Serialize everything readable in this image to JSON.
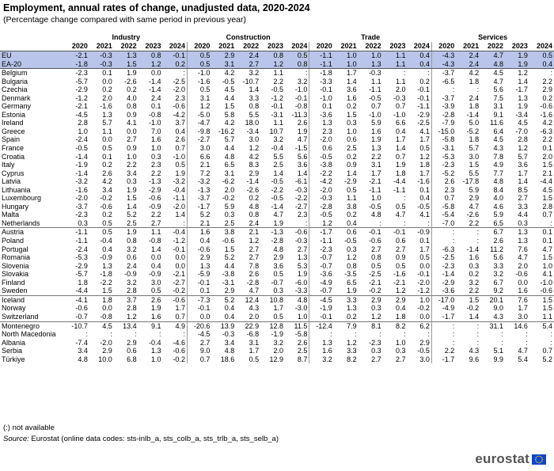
{
  "title": "Employment, annual rates of change, unadjusted data, 2020-2024",
  "subtitle": "(Percentage change compared with same period in previous year)",
  "groups": [
    "Industry",
    "Construction",
    "Trade",
    "Services"
  ],
  "years": [
    "2020",
    "2021",
    "2022",
    "2023",
    "2024"
  ],
  "rows": [
    {
      "c": "EU",
      "v": [
        "-2.1",
        "-0.3",
        "1.3",
        "0.8",
        "-0.1",
        "0.5",
        "2.9",
        "2.4",
        "0.8",
        "0.5",
        "-1.1",
        "1.0",
        "1.0",
        "1.1",
        "0.4",
        "-4.3",
        "2.4",
        "4.7",
        "1.9",
        "0.5"
      ],
      "agg": true
    },
    {
      "c": "EA-20",
      "v": [
        "-1.8",
        "-0.3",
        "1.5",
        "1.2",
        "0.2",
        "0.5",
        "3.1",
        "2.7",
        "1.2",
        "0.8",
        "-1.1",
        "1.0",
        "1.3",
        "1.1",
        "0.4",
        "-4.3",
        "2.4",
        "4.8",
        "1.9",
        "0.4"
      ],
      "agg": true,
      "last": true
    },
    {
      "c": "Belgium",
      "v": [
        "-2.3",
        "0.1",
        "1.9",
        "0.0",
        ":",
        "-1.0",
        "4.2",
        "3.2",
        "1.1",
        ":",
        "-1.8",
        "1.7",
        "-0.3",
        ":",
        ":",
        "-3.7",
        "4.2",
        "4.5",
        "1.2",
        ":"
      ]
    },
    {
      "c": "Bulgaria",
      "v": [
        "-5.7",
        "0.0",
        "-2.6",
        "-1.4",
        "-2.5",
        "-1.6",
        "-0.5",
        "-10.7",
        "2.2",
        "3.2",
        "-3.3",
        "1.4",
        "1.1",
        "1.1",
        "0.2",
        "-6.5",
        "1.8",
        "4.7",
        "1.4",
        "2.2"
      ]
    },
    {
      "c": "Czechia",
      "v": [
        "-2.9",
        "0.2",
        "0.2",
        "-1.4",
        "-2.0",
        "0.5",
        "4.5",
        "1.4",
        "-0.5",
        "-1.0",
        "-0.1",
        "3.6",
        "-1.1",
        "2.0",
        "-0.1",
        ":",
        ":",
        "5.6",
        "-1.7",
        "2.9"
      ]
    },
    {
      "c": "Denmark",
      "v": [
        "-1.2",
        "2.0",
        "4.0",
        "2.4",
        "2.3",
        "3.1",
        "4.4",
        "3.3",
        "-1.2",
        "-0.1",
        "-1.0",
        "1.6",
        "-0.5",
        "-0.3",
        "-0.1",
        "-3.7",
        "2.4",
        "7.5",
        "1.3",
        "0.2"
      ]
    },
    {
      "c": "Germany",
      "v": [
        "-2.1",
        "-1.6",
        "0.8",
        "0.1",
        "-0.6",
        "1.2",
        "1.5",
        "0.8",
        "-0.1",
        "-0.8",
        "0.1",
        "0.2",
        "0.7",
        "0.7",
        "-1.1",
        "-3.9",
        "1.8",
        "3.1",
        "1.9",
        "-0.6"
      ]
    },
    {
      "c": "Estonia",
      "v": [
        "-4.5",
        "1.3",
        "0.9",
        "-0.8",
        "-4.2",
        "-5.0",
        "5.8",
        "5.5",
        "-3.1",
        "-11.3",
        "-3.6",
        "1.5",
        "-1.0",
        "-1.0",
        "-2.9",
        "-2.8",
        "-1.4",
        "9.1",
        "-3.4",
        "-1.6"
      ]
    },
    {
      "c": "Ireland",
      "v": [
        "2.8",
        "5.7",
        "4.1",
        "-1.0",
        "3.7",
        "-4.7",
        "4.2",
        "18.0",
        "1.1",
        "2.6",
        "1.3",
        "0.3",
        "5.9",
        "6.6",
        "-2.5",
        "-7.9",
        "5.0",
        "11.6",
        "4.5",
        "4.2"
      ]
    },
    {
      "c": "Greece",
      "v": [
        "1.0",
        "1.1",
        "0.0",
        "7.0",
        "0.4",
        "-9.8",
        "-16.2",
        "-3.4",
        "10.7",
        "1.9",
        "2.3",
        "1.0",
        "1.6",
        "0.4",
        "4.1",
        "-15.0",
        "-5.2",
        "6.4",
        "-7.0",
        "-6.3"
      ]
    },
    {
      "c": "Spain",
      "v": [
        "-2.4",
        "0.0",
        "2.7",
        "1.6",
        "2.6",
        "-2.7",
        "5.7",
        "3.0",
        "3.2",
        "4.7",
        "-2.0",
        "0.6",
        "1.9",
        "1.7",
        "1.7",
        "-5.8",
        "1.8",
        "4.5",
        "2.8",
        "2.2"
      ]
    },
    {
      "c": "France",
      "v": [
        "-0.5",
        "0.5",
        "0.9",
        "1.0",
        "0.7",
        "3.0",
        "4.4",
        "1.2",
        "-0.4",
        "-1.5",
        "0.6",
        "2.5",
        "1.3",
        "1.4",
        "0.5",
        "-3.1",
        "5.7",
        "4.3",
        "1.2",
        "0.1"
      ]
    },
    {
      "c": "Croatia",
      "v": [
        "-1.4",
        "0.1",
        "1.0",
        "0.3",
        "-1.0",
        "6.6",
        "4.8",
        "4.2",
        "5.5",
        "5.6",
        "-0.5",
        "0.2",
        "2.2",
        "0.7",
        "1.2",
        "-5.3",
        "3.0",
        "7.8",
        "5.7",
        "2.0"
      ]
    },
    {
      "c": "Italy",
      "v": [
        "-1.9",
        "0.2",
        "2.2",
        "2.3",
        "0.5",
        "2.1",
        "6.5",
        "8.3",
        "2.5",
        "3.6",
        "-3.8",
        "0.9",
        "3.1",
        "1.9",
        "1.8",
        "-2.3",
        "1.5",
        "4.9",
        "3.6",
        "1.5"
      ]
    },
    {
      "c": "Cyprus",
      "v": [
        "-1.4",
        "2.6",
        "3.4",
        "2.2",
        "1.9",
        "7.2",
        "3.1",
        "2.9",
        "1.4",
        "1.4",
        "-2.2",
        "1.4",
        "1.7",
        "1.8",
        "1.7",
        "-5.2",
        "5.5",
        "7.7",
        "1.7",
        "2.1"
      ]
    },
    {
      "c": "Latvia",
      "v": [
        "-3.2",
        "4.2",
        "0.3",
        "-1.3",
        "-3.2",
        "-3.2",
        "-6.2",
        "-1.4",
        "-0.5",
        "-6.1",
        "-4.2",
        "-2.9",
        "-2.1",
        "-4.4",
        "-1.6",
        "2.6",
        "-17.8",
        "4.8",
        "1.4",
        "-4.4"
      ]
    },
    {
      "c": "Lithuania",
      "v": [
        "-1.6",
        "3.4",
        "1.9",
        "-2.9",
        "-0.4",
        "-1.3",
        "2.0",
        "-2.6",
        "-2.2",
        "-0.3",
        "-2.0",
        "0.5",
        "-1.1",
        "-1.1",
        "0.1",
        "2.3",
        "5.9",
        "8.4",
        "8.5",
        "4.5"
      ]
    },
    {
      "c": "Luxembourg",
      "v": [
        "-2.0",
        "-0.2",
        "1.5",
        "-0.6",
        "-1.1",
        "-3.7",
        "-0.2",
        "0.2",
        "-0.5",
        "-2.2",
        "-0.3",
        "1.1",
        "1.0",
        ":",
        "0.4",
        "0.7",
        "2.9",
        "4.0",
        "2.7",
        "1.5"
      ]
    },
    {
      "c": "Hungary",
      "v": [
        "-3.7",
        "-0.6",
        "1.4",
        "-0.9",
        "-2.0",
        "-1.7",
        "5.9",
        "4.8",
        "-1.4",
        "-2.7",
        "-2.8",
        "3.8",
        "-0.5",
        "0.5",
        "-0.5",
        "-5.8",
        "4.7",
        "4.6",
        "3.3",
        "2.8"
      ]
    },
    {
      "c": "Malta",
      "v": [
        "-2.3",
        "0.2",
        "5.2",
        "2.2",
        "1.4",
        "5.2",
        "0.3",
        "0.8",
        "4.7",
        "2.3",
        "-0.5",
        "0.2",
        "4.8",
        "4.7",
        "4.1",
        "-5.4",
        "-2.6",
        "5.9",
        "4.4",
        "0.7"
      ]
    },
    {
      "c": "Netherlands",
      "v": [
        "0.3",
        "0.5",
        "2.5",
        "2.7",
        ":",
        "2.1",
        "2.5",
        "2.4",
        "1.9",
        ":",
        "1.2",
        "0.4",
        ":",
        ":",
        ":",
        "-7.0",
        "2.2",
        "6.5",
        "0.3",
        ":"
      ]
    },
    {
      "c": "Austria",
      "v": [
        "-1.1",
        "0.5",
        "1.9",
        "1.1",
        "-0.4",
        "1.6",
        "3.8",
        "2.1",
        "-1.3",
        "-0.6",
        "-1.7",
        "0.6",
        "-0.1",
        "-0.1",
        "-0.9",
        ":",
        ":",
        "6.7",
        "1.3",
        "0.1"
      ],
      "sep": true
    },
    {
      "c": "Poland",
      "v": [
        "-1.1",
        "-0.4",
        "0.8",
        "-0.8",
        "-1.2",
        "0.4",
        "-0.6",
        "1.2",
        "-2.8",
        "-0.3",
        "-1.1",
        "-0.5",
        "-0.6",
        "0.6",
        "0.1",
        ":",
        ":",
        "2.6",
        "1.3",
        "0.1"
      ]
    },
    {
      "c": "Portugal",
      "v": [
        "-2.4",
        "0.4",
        "3.2",
        "1.4",
        "-0.1",
        "-0.6",
        "1.5",
        "2.7",
        "4.8",
        "2.7",
        "-2.3",
        "0.3",
        "2.7",
        "2.7",
        "1.7",
        "-6.3",
        "-1.4",
        "11.2",
        "7.6",
        "4.7"
      ]
    },
    {
      "c": "Romania",
      "v": [
        "-5.3",
        "-0.9",
        "0.6",
        "0.0",
        "0.0",
        "2.9",
        "5.2",
        "2.7",
        "2.9",
        "1.3",
        "-0.7",
        "1.2",
        "0.8",
        "0.9",
        "0.5",
        "-2.5",
        "1.6",
        "5.6",
        "4.7",
        "1.5"
      ]
    },
    {
      "c": "Slovenia",
      "v": [
        "-2.9",
        "1.3",
        "2.4",
        "0.4",
        "0.0",
        "1.3",
        "4.4",
        "7.8",
        "3.6",
        "5.3",
        "-0.7",
        "0.8",
        "0.5",
        "0.5",
        "0.0",
        "-2.3",
        "0.3",
        "3.3",
        "2.0",
        "1.0"
      ]
    },
    {
      "c": "Slovakia",
      "v": [
        "-5.7",
        "-1.8",
        "-0.9",
        "-0.9",
        "-2.1",
        "-5.9",
        "-3.8",
        "2.6",
        "0.5",
        "1.9",
        "-3.6",
        "-3.5",
        "-2.5",
        "-1.6",
        "-0.1",
        "-1.4",
        "0.2",
        "3.2",
        "-0.6",
        "4.1"
      ]
    },
    {
      "c": "Finland",
      "v": [
        "1.8",
        "-2.2",
        "3.2",
        "3.0",
        "-2.7",
        "-0.1",
        "-3.1",
        "-2.8",
        "-0.7",
        "-6.0",
        "-4.9",
        "6.5",
        "-2.1",
        "-2.1",
        "-2.0",
        "-2.9",
        "3.2",
        "6.7",
        "0.0",
        "-1.0"
      ]
    },
    {
      "c": "Sweden",
      "v": [
        "-4.4",
        "1.5",
        "2.8",
        "0.5",
        "-0.2",
        "0.1",
        "2.9",
        "4.7",
        "0.3",
        "-3.3",
        "-0.7",
        "1.9",
        "-0.2",
        "1.2",
        "-1.2",
        "-3.6",
        "2.2",
        "9.2",
        "1.6",
        "-0.6"
      ]
    },
    {
      "c": "Iceland",
      "v": [
        "-4.1",
        "1.8",
        "3.7",
        "2.6",
        "-0.6",
        "-7.3",
        "5.2",
        "12.4",
        "10.8",
        "4.8",
        "-4.5",
        "3.3",
        "2.9",
        "2.9",
        "1.0",
        "-17.0",
        "1.5",
        "20.1",
        "7.6",
        "1.5"
      ],
      "sep": true
    },
    {
      "c": "Norway",
      "v": [
        "-0.6",
        "0.0",
        "2.8",
        "1.9",
        "1.7",
        "-0.1",
        "0.4",
        "4.3",
        "1.7",
        "-3.0",
        "-1.9",
        "1.3",
        "0.3",
        "0.4",
        "-0.2",
        "-4.9",
        "-0.2",
        "9.0",
        "1.7",
        "1.5"
      ]
    },
    {
      "c": "Switzerland",
      "v": [
        "-0.7",
        "-0.8",
        "1.2",
        "1.6",
        "0.7",
        "0.0",
        "0.4",
        "2.0",
        "0.5",
        "1.0",
        "-0.1",
        "0.2",
        "1.2",
        "1.8",
        "0.0",
        "-1.7",
        "1.4",
        "4.3",
        "3.0",
        "1.1"
      ]
    },
    {
      "c": "Montenegro",
      "v": [
        "-10.7",
        "4.5",
        "13.4",
        "9.1",
        "4.9",
        "-20.6",
        "13.9",
        "22.9",
        "12.8",
        "11.5",
        "-12.4",
        "7.9",
        "8.1",
        "8.2",
        "6.2",
        ":",
        ":",
        "31.1",
        "14.6",
        "5.4"
      ],
      "sep": true
    },
    {
      "c": "North Macedonia",
      "v": [
        ":",
        ":",
        ":",
        ":",
        ":",
        "-4.5",
        "-0.3",
        "-6.8",
        "-1.9",
        "-5.8",
        ":",
        ":",
        ":",
        ":",
        ":",
        ":",
        ":",
        ":",
        ":",
        ":"
      ]
    },
    {
      "c": "Albania",
      "v": [
        "-7.4",
        "-2.0",
        "2.9",
        "-0.4",
        "-4.6",
        "2.7",
        "3.4",
        "3.1",
        "3.2",
        "2.6",
        "1.3",
        "1.2",
        "-2.3",
        "1.0",
        "2.9",
        ":",
        ":",
        ":",
        ":",
        ":"
      ]
    },
    {
      "c": "Serbia",
      "v": [
        "3.4",
        "2.9",
        "0.6",
        "1.3",
        "-0.6",
        "9.0",
        "4.8",
        "1.7",
        "2.0",
        "2.5",
        "1.6",
        "3.3",
        "0.3",
        "0.3",
        "-0.5",
        "2.2",
        "4.3",
        "5.1",
        "4.7",
        "0.7"
      ]
    },
    {
      "c": "Türkiye",
      "v": [
        "4.8",
        "10.0",
        "6.8",
        "1.0",
        "-0.2",
        "0.7",
        "18.6",
        "0.5",
        "12.9",
        "8.7",
        "3.2",
        "8.2",
        "2.7",
        "2.7",
        "3.0",
        "-1.7",
        "9.6",
        "9.9",
        "5.4",
        "5.2"
      ]
    }
  ],
  "note": "(:) not available",
  "source_label": "Source:",
  "source_text": " Eurostat (online data codes: sts-inlb_a, sts_colb_a, sts_trlb_a, sts_selb_a)",
  "logo_text": "eurostat",
  "colors": {
    "aggregate_row": "#b9c5ea",
    "logo_text": "#555555",
    "flag": "#0e47cb",
    "flag_stars": "#ffd617"
  }
}
